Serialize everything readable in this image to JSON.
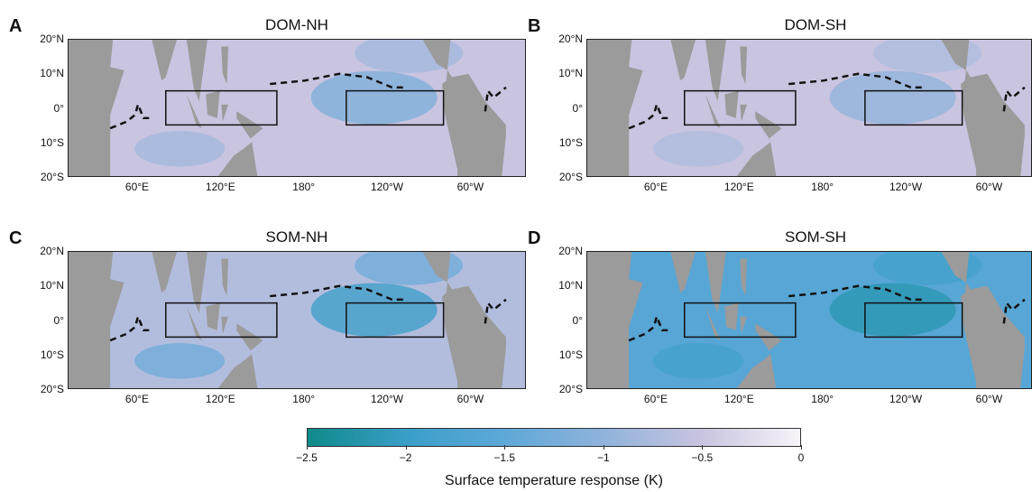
{
  "chart_data": [
    {
      "type": "heatmap",
      "panel_label": "A",
      "title": "DOM-NH",
      "yticks": [
        "20°N",
        "10°N",
        "0°",
        "10°S",
        "20°S"
      ],
      "xticks": [
        "60°E",
        "120°E",
        "180°",
        "120°W",
        "60°W"
      ],
      "mean_response_K": -0.5,
      "min_response_K": -1.2,
      "boxes": [
        "80°E–160°E, 5°S–5°N",
        "150°W–80°W, 5°S–5°N"
      ]
    },
    {
      "type": "heatmap",
      "panel_label": "B",
      "title": "DOM-SH",
      "yticks": [
        "20°N",
        "10°N",
        "0°",
        "10°S",
        "20°S"
      ],
      "xticks": [
        "60°E",
        "120°E",
        "180°",
        "120°W",
        "60°W"
      ],
      "mean_response_K": -0.5,
      "min_response_K": -1.0,
      "boxes": [
        "80°E–160°E, 5°S–5°N",
        "150°W–80°W, 5°S–5°N"
      ]
    },
    {
      "type": "heatmap",
      "panel_label": "C",
      "title": "SOM-NH",
      "yticks": [
        "20°N",
        "10°N",
        "0°",
        "10°S",
        "20°S"
      ],
      "xticks": [
        "60°E",
        "120°E",
        "180°",
        "120°W",
        "60°W"
      ],
      "mean_response_K": -0.7,
      "min_response_K": -2.0,
      "boxes": [
        "80°E–160°E, 5°S–5°N",
        "150°W–80°W, 5°S–5°N"
      ]
    },
    {
      "type": "heatmap",
      "panel_label": "D",
      "title": "SOM-SH",
      "yticks": [
        "20°N",
        "10°N",
        "0°",
        "10°S",
        "20°S"
      ],
      "xticks": [
        "60°E",
        "120°E",
        "180°",
        "120°W",
        "60°W"
      ],
      "mean_response_K": -1.6,
      "min_response_K": -2.2,
      "boxes": [
        "80°E–160°E, 5°S–5°N",
        "150°W–80°W, 5°S–5°N"
      ]
    }
  ],
  "colorbar": {
    "label": "Surface temperature response (K)",
    "ticks": [
      "−2.5",
      "−2",
      "−1.5",
      "−1",
      "−0.5",
      "0"
    ],
    "range": [
      -2.5,
      0
    ],
    "colors": [
      "#0e8a8a",
      "#3a9ec8",
      "#5ea8d8",
      "#8fb3db",
      "#c9c4e0",
      "#f7f4f9"
    ]
  },
  "land_color": "#9b9b9b",
  "itcz_line_color": "#111111"
}
